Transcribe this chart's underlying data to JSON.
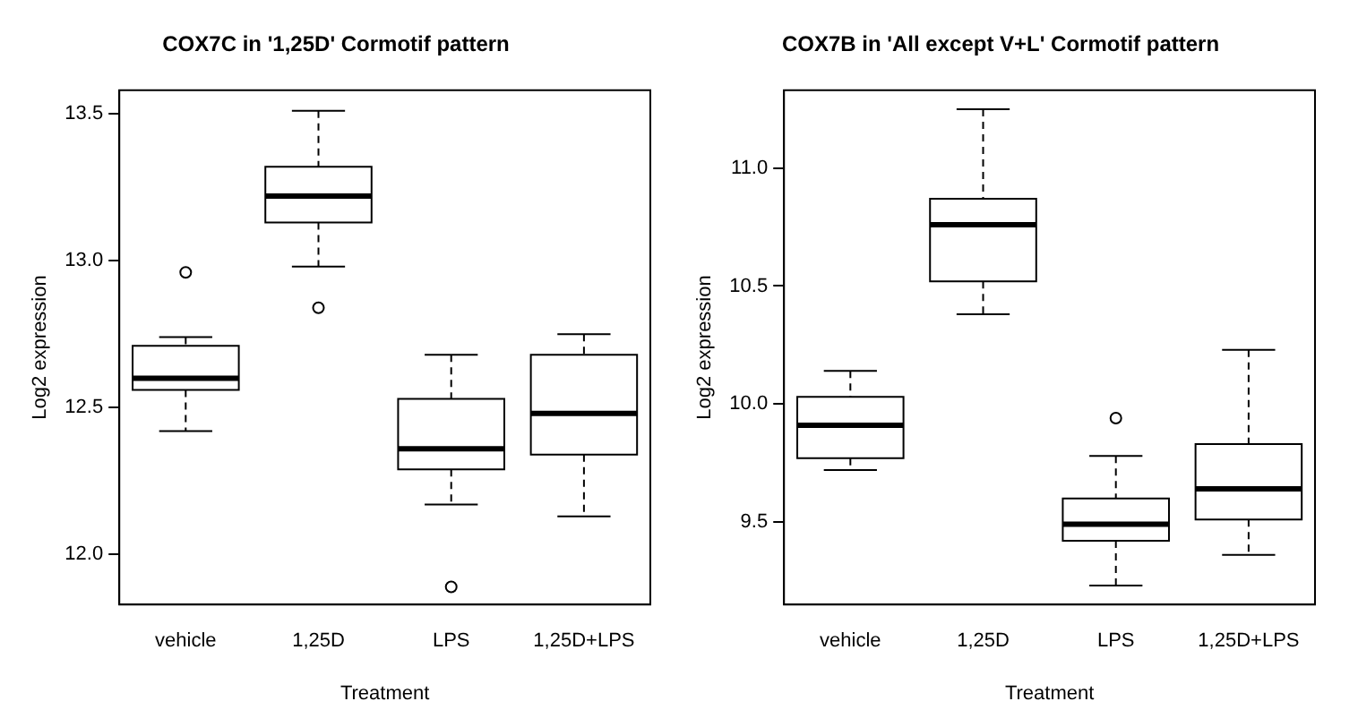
{
  "chart_data": [
    {
      "type": "box",
      "title": "COX7C in '1,25D' Cormotif pattern",
      "xlabel": "Treatment",
      "ylabel": "Log2 expression",
      "categories": [
        "vehicle",
        "1,25D",
        "LPS",
        "1,25D+LPS"
      ],
      "boxes": [
        {
          "low": 12.42,
          "q1": 12.56,
          "median": 12.6,
          "q3": 12.71,
          "high": 12.74,
          "outliers": [
            12.96
          ]
        },
        {
          "low": 12.98,
          "q1": 13.13,
          "median": 13.22,
          "q3": 13.32,
          "high": 13.51,
          "outliers": [
            12.84
          ]
        },
        {
          "low": 12.17,
          "q1": 12.29,
          "median": 12.36,
          "q3": 12.53,
          "high": 12.68,
          "outliers": [
            11.89
          ]
        },
        {
          "low": 12.13,
          "q1": 12.34,
          "median": 12.48,
          "q3": 12.68,
          "high": 12.75
        }
      ],
      "ylim": [
        11.83,
        13.58
      ],
      "yticks": [
        {
          "value": 12,
          "label": "12.0"
        },
        12.5,
        {
          "value": 13,
          "label": "13.0"
        },
        13.5
      ],
      "grid": false
    },
    {
      "type": "box",
      "title": "COX7B in 'All except V+L' Cormotif pattern",
      "xlabel": "Treatment",
      "ylabel": "Log2 expression",
      "categories": [
        "vehicle",
        "1,25D",
        "LPS",
        "1,25D+LPS"
      ],
      "boxes": [
        {
          "low": 9.72,
          "q1": 9.77,
          "median": 9.91,
          "q3": 10.03,
          "high": 10.14
        },
        {
          "low": 10.38,
          "q1": 10.52,
          "median": 10.76,
          "q3": 10.87,
          "high": 11.25
        },
        {
          "low": 9.23,
          "q1": 9.42,
          "median": 9.49,
          "q3": 9.6,
          "high": 9.78,
          "outliers": [
            9.94
          ]
        },
        {
          "low": 9.36,
          "q1": 9.51,
          "median": 9.64,
          "q3": 9.83,
          "high": 10.23
        }
      ],
      "ylim": [
        9.15,
        11.33
      ],
      "yticks": [
        9.5,
        {
          "value": 10,
          "label": "10.0"
        },
        10.5,
        {
          "value": 11,
          "label": "11.0"
        }
      ],
      "grid": false
    }
  ]
}
